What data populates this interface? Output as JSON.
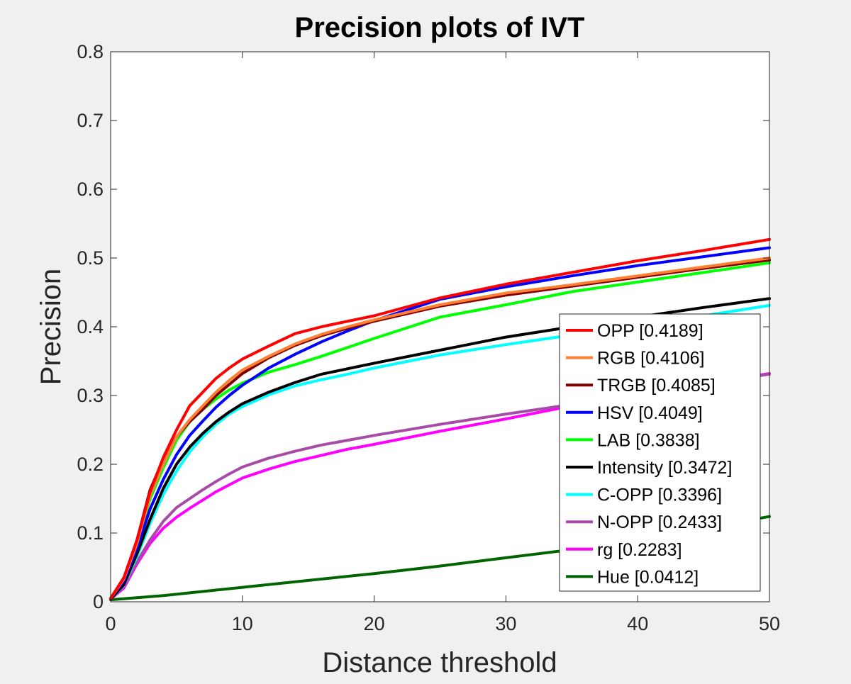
{
  "chart_data": {
    "type": "line",
    "title": "Precision plots of IVT",
    "xlabel": "Distance threshold",
    "ylabel": "Precision",
    "xlim": [
      0,
      50
    ],
    "ylim": [
      0,
      0.8
    ],
    "xticks": [
      0,
      10,
      20,
      30,
      40,
      50
    ],
    "xtick_labels": [
      "0",
      "10",
      "20",
      "30",
      "40",
      "50"
    ],
    "yticks": [
      0,
      0.1,
      0.2,
      0.3,
      0.4,
      0.5,
      0.6,
      0.7,
      0.8
    ],
    "ytick_labels": [
      "0",
      "0.1",
      "0.2",
      "0.3",
      "0.4",
      "0.5",
      "0.6",
      "0.7",
      "0.8"
    ],
    "grid": false,
    "legend_position": "lower-right",
    "series": [
      {
        "name": "OPP [0.4189]",
        "color": "#ff0000",
        "x": [
          0,
          1,
          2,
          3,
          4,
          5,
          6,
          7,
          8,
          9,
          10,
          12,
          14,
          16,
          18,
          20,
          25,
          30,
          35,
          40,
          45,
          50
        ],
        "y": [
          0.005,
          0.035,
          0.09,
          0.16,
          0.21,
          0.25,
          0.285,
          0.305,
          0.325,
          0.34,
          0.353,
          0.372,
          0.39,
          0.4,
          0.408,
          0.416,
          0.442,
          0.462,
          0.479,
          0.496,
          0.511,
          0.527
        ]
      },
      {
        "name": "RGB [0.4106]",
        "color": "#ff8033",
        "x": [
          0,
          1,
          2,
          3,
          4,
          5,
          6,
          7,
          8,
          9,
          10,
          12,
          14,
          16,
          18,
          20,
          25,
          30,
          35,
          40,
          45,
          50
        ],
        "y": [
          0.005,
          0.033,
          0.085,
          0.155,
          0.2,
          0.24,
          0.265,
          0.285,
          0.305,
          0.322,
          0.337,
          0.357,
          0.375,
          0.389,
          0.4,
          0.41,
          0.432,
          0.449,
          0.461,
          0.474,
          0.487,
          0.5
        ]
      },
      {
        "name": "TRGB [0.4085]",
        "color": "#800000",
        "x": [
          0,
          1,
          2,
          3,
          4,
          5,
          6,
          7,
          8,
          9,
          10,
          12,
          14,
          16,
          18,
          20,
          25,
          30,
          35,
          40,
          45,
          50
        ],
        "y": [
          0.005,
          0.033,
          0.09,
          0.163,
          0.207,
          0.24,
          0.262,
          0.28,
          0.3,
          0.316,
          0.332,
          0.355,
          0.373,
          0.387,
          0.398,
          0.408,
          0.43,
          0.446,
          0.459,
          0.472,
          0.485,
          0.497
        ]
      },
      {
        "name": "HSV [0.4049]",
        "color": "#0000ff",
        "x": [
          0,
          1,
          2,
          3,
          4,
          5,
          6,
          7,
          8,
          9,
          10,
          12,
          14,
          16,
          18,
          20,
          25,
          30,
          35,
          40,
          45,
          50
        ],
        "y": [
          0.005,
          0.03,
          0.078,
          0.135,
          0.178,
          0.214,
          0.242,
          0.263,
          0.283,
          0.3,
          0.315,
          0.34,
          0.36,
          0.378,
          0.394,
          0.409,
          0.44,
          0.458,
          0.474,
          0.489,
          0.502,
          0.515
        ]
      },
      {
        "name": "LAB [0.3838]",
        "color": "#00ff00",
        "x": [
          0,
          1,
          2,
          3,
          4,
          5,
          6,
          7,
          8,
          9,
          10,
          12,
          14,
          16,
          18,
          20,
          25,
          30,
          35,
          40,
          45,
          50
        ],
        "y": [
          0.005,
          0.033,
          0.082,
          0.15,
          0.195,
          0.235,
          0.262,
          0.28,
          0.295,
          0.308,
          0.318,
          0.334,
          0.345,
          0.357,
          0.37,
          0.383,
          0.414,
          0.432,
          0.451,
          0.465,
          0.479,
          0.493
        ]
      },
      {
        "name": "Intensity [0.3472]",
        "color": "#000000",
        "x": [
          0,
          1,
          2,
          3,
          4,
          5,
          6,
          7,
          8,
          9,
          10,
          12,
          14,
          16,
          18,
          20,
          25,
          30,
          35,
          40,
          45,
          50
        ],
        "y": [
          0.004,
          0.025,
          0.07,
          0.12,
          0.165,
          0.2,
          0.225,
          0.245,
          0.262,
          0.276,
          0.288,
          0.305,
          0.319,
          0.331,
          0.339,
          0.347,
          0.366,
          0.385,
          0.4,
          0.414,
          0.428,
          0.441
        ]
      },
      {
        "name": "C-OPP [0.3396]",
        "color": "#00ffff",
        "x": [
          0,
          1,
          2,
          3,
          4,
          5,
          6,
          7,
          8,
          9,
          10,
          12,
          14,
          16,
          18,
          20,
          25,
          30,
          35,
          40,
          45,
          50
        ],
        "y": [
          0.004,
          0.024,
          0.066,
          0.114,
          0.156,
          0.19,
          0.218,
          0.24,
          0.258,
          0.273,
          0.284,
          0.301,
          0.314,
          0.323,
          0.331,
          0.34,
          0.359,
          0.374,
          0.388,
          0.402,
          0.416,
          0.431
        ]
      },
      {
        "name": "N-OPP [0.2433]",
        "color": "#a64ca6",
        "x": [
          0,
          1,
          2,
          3,
          4,
          5,
          6,
          7,
          8,
          9,
          10,
          12,
          14,
          16,
          18,
          20,
          25,
          30,
          35,
          40,
          45,
          50
        ],
        "y": [
          0.004,
          0.023,
          0.058,
          0.09,
          0.117,
          0.137,
          0.15,
          0.163,
          0.175,
          0.186,
          0.196,
          0.209,
          0.219,
          0.228,
          0.235,
          0.242,
          0.258,
          0.273,
          0.287,
          0.302,
          0.317,
          0.331
        ]
      },
      {
        "name": "rg [0.2283]",
        "color": "#ff00ff",
        "x": [
          0,
          1,
          2,
          3,
          4,
          5,
          6,
          7,
          8,
          9,
          10,
          12,
          14,
          16,
          18,
          20,
          25,
          30,
          35,
          40,
          45,
          50
        ],
        "y": [
          0.004,
          0.02,
          0.055,
          0.085,
          0.107,
          0.123,
          0.136,
          0.148,
          0.16,
          0.17,
          0.18,
          0.193,
          0.204,
          0.213,
          0.222,
          0.229,
          0.248,
          0.266,
          0.285,
          0.302,
          0.317,
          0.332
        ]
      },
      {
        "name": "Hue [0.0412]",
        "color": "#006400",
        "x": [
          0,
          2,
          4,
          6,
          8,
          10,
          15,
          20,
          25,
          30,
          35,
          40,
          45,
          50
        ],
        "y": [
          0.003,
          0.006,
          0.009,
          0.013,
          0.017,
          0.021,
          0.031,
          0.041,
          0.052,
          0.064,
          0.076,
          0.091,
          0.107,
          0.124
        ]
      }
    ]
  }
}
